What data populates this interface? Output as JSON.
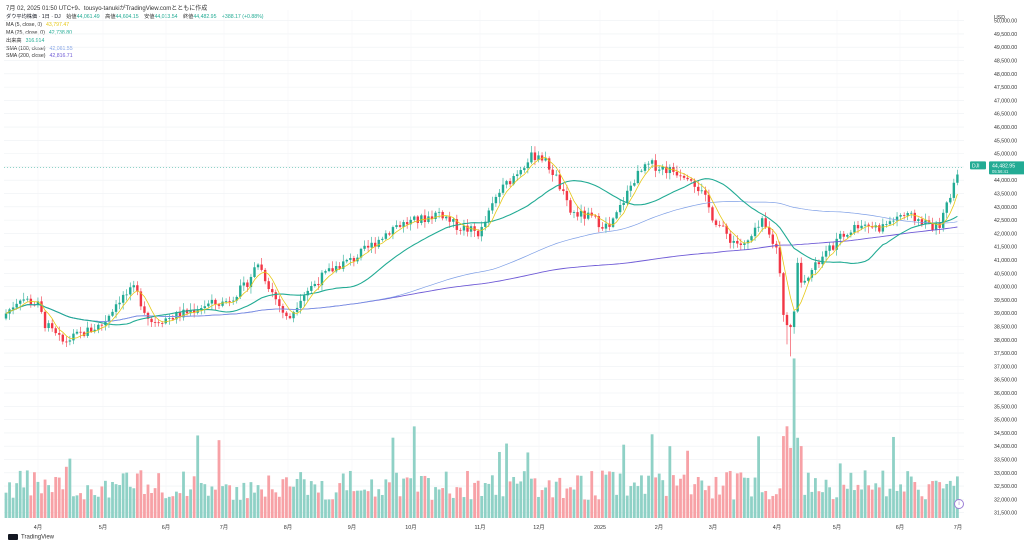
{
  "header": {
    "title_line": "7月 02, 2025 01:50 UTC+9、tousyo-tanukiがTradingView.comとともに作成"
  },
  "legend": {
    "symbol_title": "ダウ平均株価 · 1日 · DJ",
    "ohlc": [
      {
        "label": "始値",
        "value": "44,061.49"
      },
      {
        "label": "高値",
        "value": "44,604.15"
      },
      {
        "label": "安値",
        "value": "44,013.54"
      },
      {
        "label": "終値",
        "value": "44,482.95"
      },
      {
        "label": "",
        "value": "+388.17 (+0.88%)"
      }
    ],
    "indicators": [
      {
        "label": "MA (5, close, 0)",
        "value": "43,797.47",
        "color": "#e6c817"
      },
      {
        "label": "MA (25, close, 0)",
        "value": "42,738.80",
        "color": "#22ab94"
      },
      {
        "label": "出来高",
        "value": "316.914",
        "color": "#22ab94"
      },
      {
        "label": "SMA (100, close)",
        "value": "42,061.55",
        "color": "#7e9fe6"
      },
      {
        "label": "SMA (200, close)",
        "value": "42,816.71",
        "color": "#6f5bd6"
      }
    ]
  },
  "price_axis": {
    "currency": "USD",
    "labels": [
      "50,000.00",
      "49,500.00",
      "49,000.00",
      "48,500.00",
      "48,000.00",
      "47,500.00",
      "47,000.00",
      "46,500.00",
      "46,000.00",
      "45,500.00",
      "45,000.00",
      "44,500.00",
      "44,000.00",
      "43,500.00",
      "43,000.00",
      "42,500.00",
      "42,000.00",
      "41,500.00",
      "41,000.00",
      "40,500.00",
      "40,000.00",
      "39,500.00",
      "39,000.00",
      "38,500.00",
      "38,000.00",
      "37,500.00",
      "37,000.00",
      "36,500.00",
      "36,000.00",
      "35,500.00",
      "35,000.00",
      "34,500.00",
      "34,000.00",
      "33,500.00",
      "33,000.00",
      "32,500.00",
      "32,000.00",
      "31,500.00"
    ],
    "last_price_label": "44,482.95",
    "last_price_sub": "05:56:41",
    "flag": "DJI"
  },
  "time_axis": {
    "labels": [
      "4月",
      "5月",
      "6月",
      "7月",
      "8月",
      "9月",
      "10月",
      "11月",
      "12月",
      "2025",
      "2月",
      "3月",
      "4月",
      "5月",
      "6月",
      "7月"
    ]
  },
  "footer": {
    "brand": "TradingView"
  },
  "colors": {
    "up": "#22ab94",
    "down": "#f23645",
    "vol_up": "#8fd1c6",
    "vol_down": "#f7a1a6",
    "ma5": "#e6c817",
    "ma25": "#22ab94",
    "sma100": "#7e9fe6",
    "sma200": "#6f5bd6",
    "grid": "#eef0f3",
    "last_price_bg": "#22ab94"
  },
  "chart_data": {
    "type": "candlestick",
    "title": "ダウ平均株価 · 1日 · DJ",
    "x": [
      "2024-03",
      "2024-04",
      "2024-05",
      "2024-06",
      "2024-07",
      "2024-08",
      "2024-09",
      "2024-10",
      "2024-11",
      "2024-12",
      "2025-01",
      "2025-02",
      "2025-03",
      "2025-04",
      "2025-05",
      "2025-06",
      "2025-07"
    ],
    "close_monthly_approx": [
      38900,
      37900,
      38700,
      39100,
      40500,
      41300,
      42300,
      42000,
      45000,
      42500,
      44500,
      43800,
      41600,
      40700,
      42300,
      44100,
      44483
    ],
    "ylim": [
      31500,
      50000
    ],
    "series": [
      {
        "name": "MA (5, close, 0)",
        "last": 43797.47
      },
      {
        "name": "MA (25, close, 0)",
        "last": 42738.8
      },
      {
        "name": "SMA (100, close)",
        "last": 42061.55
      },
      {
        "name": "SMA (200, close)",
        "last": 42816.71
      }
    ],
    "last_close": 44482.95,
    "grid": true
  }
}
